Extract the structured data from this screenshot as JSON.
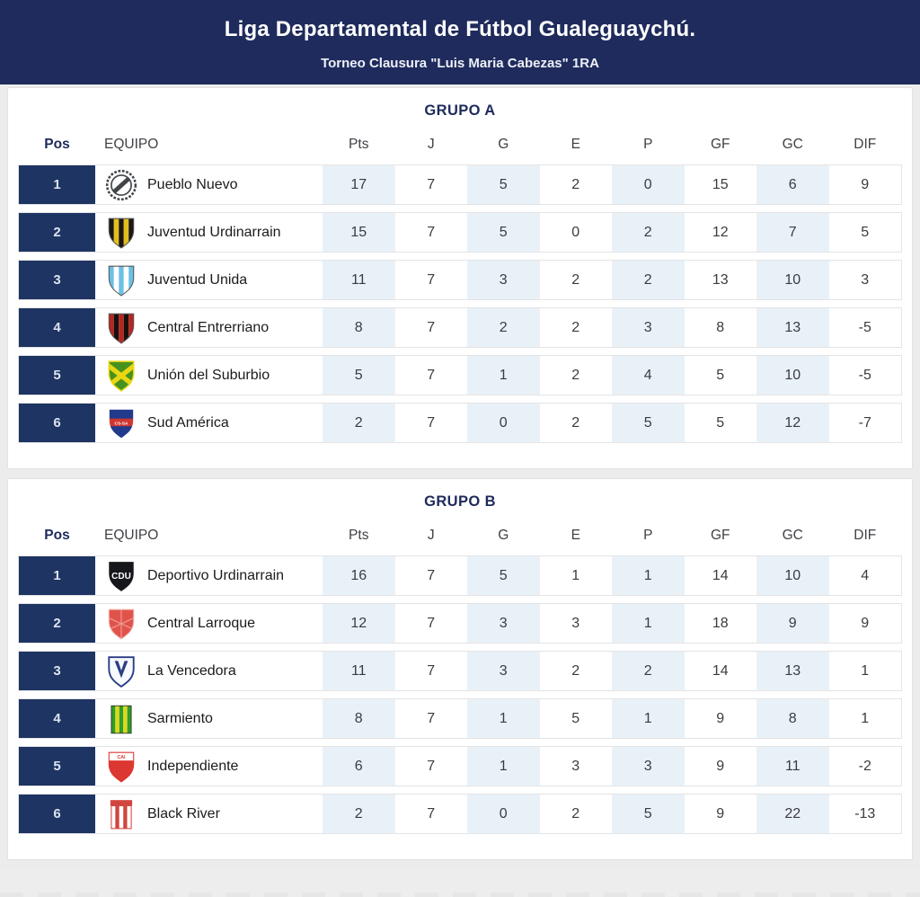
{
  "header": {
    "title": "Liga Departamental de Fútbol Gualeguaychú.",
    "subtitle": "Torneo Clausura \"Luis Maria Cabezas\" 1RA"
  },
  "colors": {
    "banner_bg": "#1f2b5c",
    "position_badge_bg": "#1e3462",
    "column_shade": "#e9f1f8",
    "accent_navy": "#1e2a5c"
  },
  "chart_data": [
    {
      "type": "table",
      "title": "GRUPO A",
      "columns": [
        "Pos",
        "EQUIPO",
        "Pts",
        "J",
        "G",
        "E",
        "P",
        "GF",
        "GC",
        "DIF"
      ],
      "rows": [
        {
          "pos": "1",
          "team": "Pueblo Nuevo",
          "values": [
            "17",
            "7",
            "5",
            "2",
            "0",
            "15",
            "6",
            "9"
          ],
          "logo": {
            "type": "wreath",
            "colors": [
              "#41464a",
              "#ffffff"
            ],
            "text": ""
          }
        },
        {
          "pos": "2",
          "team": "Juventud Urdinarrain",
          "values": [
            "15",
            "7",
            "5",
            "0",
            "2",
            "12",
            "7",
            "5"
          ],
          "logo": {
            "type": "shield-stripes",
            "colors": [
              "#1c1711",
              "#e3bf1c"
            ],
            "text": ""
          }
        },
        {
          "pos": "3",
          "team": "Juventud Unida",
          "values": [
            "11",
            "7",
            "3",
            "2",
            "2",
            "13",
            "10",
            "3"
          ],
          "logo": {
            "type": "shield-stripes",
            "colors": [
              "#6cc0e6",
              "#ffffff"
            ],
            "text": ""
          }
        },
        {
          "pos": "4",
          "team": "Central Entrerriano",
          "values": [
            "8",
            "7",
            "2",
            "2",
            "3",
            "8",
            "13",
            "-5"
          ],
          "logo": {
            "type": "shield-stripes",
            "colors": [
              "#b5271f",
              "#19100e"
            ],
            "text": ""
          }
        },
        {
          "pos": "5",
          "team": "Unión del Suburbio",
          "values": [
            "5",
            "7",
            "1",
            "2",
            "4",
            "5",
            "10",
            "-5"
          ],
          "logo": {
            "type": "shield-cross",
            "colors": [
              "#47921f",
              "#ead613"
            ],
            "text": ""
          }
        },
        {
          "pos": "6",
          "team": "Sud América",
          "values": [
            "2",
            "7",
            "0",
            "2",
            "5",
            "5",
            "12",
            "-7"
          ],
          "logo": {
            "type": "shield-band",
            "colors": [
              "#223a8c",
              "#cf3730"
            ],
            "text": "CS-SA"
          }
        }
      ]
    },
    {
      "type": "table",
      "title": "GRUPO B",
      "columns": [
        "Pos",
        "EQUIPO",
        "Pts",
        "J",
        "G",
        "E",
        "P",
        "GF",
        "GC",
        "DIF"
      ],
      "rows": [
        {
          "pos": "1",
          "team": "Deportivo Urdinarrain",
          "values": [
            "16",
            "7",
            "5",
            "1",
            "1",
            "14",
            "10",
            "4"
          ],
          "logo": {
            "type": "shield-letters",
            "colors": [
              "#15171b",
              "#ffffff"
            ],
            "text": "CDU"
          }
        },
        {
          "pos": "2",
          "team": "Central Larroque",
          "values": [
            "12",
            "7",
            "3",
            "3",
            "1",
            "18",
            "9",
            "9"
          ],
          "logo": {
            "type": "shield-solid",
            "colors": [
              "#e0534b",
              "#f2b5b0"
            ],
            "text": ""
          }
        },
        {
          "pos": "3",
          "team": "La Vencedora",
          "values": [
            "11",
            "7",
            "3",
            "2",
            "2",
            "14",
            "13",
            "1"
          ],
          "logo": {
            "type": "shield-v",
            "colors": [
              "#f8f9fb",
              "#2b3f85"
            ],
            "text": ""
          }
        },
        {
          "pos": "4",
          "team": "Sarmiento",
          "values": [
            "8",
            "7",
            "1",
            "5",
            "1",
            "9",
            "8",
            "1"
          ],
          "logo": {
            "type": "stripes-rect",
            "colors": [
              "#2f9f25",
              "#ded81e"
            ],
            "text": ""
          }
        },
        {
          "pos": "5",
          "team": "Independiente",
          "values": [
            "6",
            "7",
            "1",
            "3",
            "3",
            "9",
            "11",
            "-2"
          ],
          "logo": {
            "type": "shield-topband",
            "colors": [
              "#dd3732",
              "#ffffff"
            ],
            "text": "CAI"
          }
        },
        {
          "pos": "6",
          "team": "Black River",
          "values": [
            "2",
            "7",
            "0",
            "2",
            "5",
            "9",
            "22",
            "-13"
          ],
          "logo": {
            "type": "stripes-banner",
            "colors": [
              "#d2453e",
              "#ffffff"
            ],
            "text": ""
          }
        }
      ]
    }
  ]
}
